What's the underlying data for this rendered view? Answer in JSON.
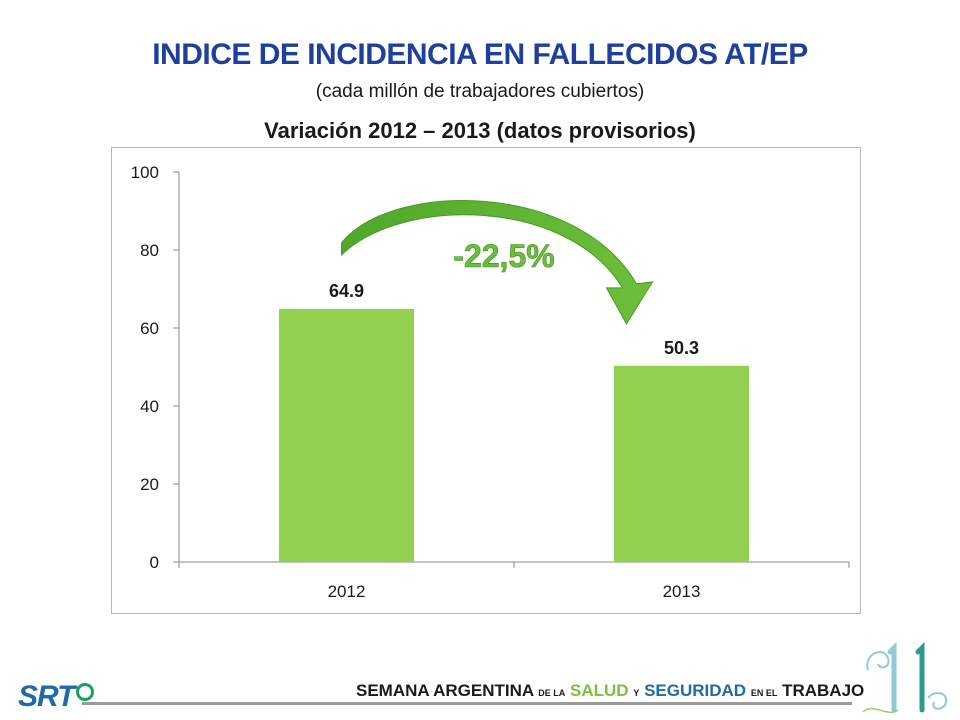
{
  "header": {
    "title": "INDICE DE INCIDENCIA EN FALLECIDOS AT/EP",
    "subtitle": "(cada millón de trabajadores cubiertos)",
    "variation": "Variación 2012 – 2013 (datos provisorios)"
  },
  "chart_data": {
    "type": "bar",
    "categories": [
      "2012",
      "2013"
    ],
    "values": [
      64.9,
      50.3
    ],
    "value_labels": [
      "64.9",
      "50.3"
    ],
    "ylim": [
      0,
      100
    ],
    "yticks": [
      0,
      20,
      40,
      60,
      80,
      100
    ],
    "ytick_labels": [
      "0",
      "20",
      "40",
      "60",
      "80",
      "100"
    ],
    "annotation": "-22,5%",
    "grid": false,
    "bar_color": "#92d050",
    "arrow_color": "#6cbf3a",
    "annotation_color": "#6cbf3a"
  },
  "footer": {
    "logo": "SRT",
    "text_part1": "SEMANA ARGENTINA",
    "text_part2": "DE LA",
    "text_part3": "SALUD",
    "text_part4": "Y",
    "text_part5": "SEGURIDAD",
    "text_part6": "EN EL",
    "text_part7": "TRABAJO",
    "edition": "11"
  }
}
